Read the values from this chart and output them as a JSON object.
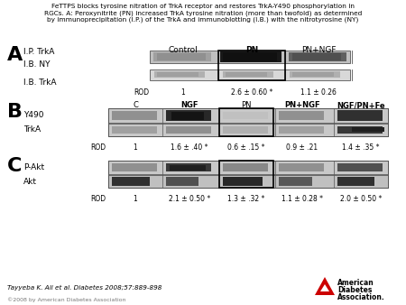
{
  "title": "FeTTPS blocks tyrosine nitration of TrkA receptor and restores TrkA-Y490 phosphorylation in\nRGCs. A: Peroxynitrite (PN) increased TrkA tyrosine nitration (more than twofold) as determined\nby immunoprecipitation (I.P.) of the TrkA and immunoblotting (I.B.) with the nitrotyrosine (NY)",
  "citation": "Tayyeba K. Ali et al. Diabetes 2008;57:889-898",
  "copyright": "©2008 by American Diabetes Association",
  "A_row_labels": [
    "I.P. TrkA",
    "I.B. NY",
    "I.B. TrkA"
  ],
  "A_col_labels": [
    "Control",
    "PN",
    "PN+NGF"
  ],
  "A_ROD_values": [
    "1",
    "2.6 ± 0.60",
    "1.1 ± 0.26"
  ],
  "A_ROD_asterisk": [
    false,
    true,
    false
  ],
  "B_row_labels": [
    "Y490",
    "TrkA"
  ],
  "B_col_labels": [
    "C",
    "NGF",
    "PN",
    "PN+NGF",
    "NGF/PN+Fe"
  ],
  "B_ROD_values": [
    "1",
    "1.6 ± .40",
    "0.6 ± .15",
    "0.9 ± .21",
    "1.4 ± .35"
  ],
  "B_ROD_asterisk": [
    false,
    true,
    true,
    false,
    true
  ],
  "C_row_labels": [
    "P-Akt",
    "Akt"
  ],
  "C_ROD_values": [
    "1",
    "2.1 ± 0.50",
    "1.3 ± .32",
    "1.1 ± 0.28",
    "2.0 ± 0.50"
  ],
  "C_ROD_asterisk": [
    false,
    true,
    true,
    true,
    true
  ]
}
